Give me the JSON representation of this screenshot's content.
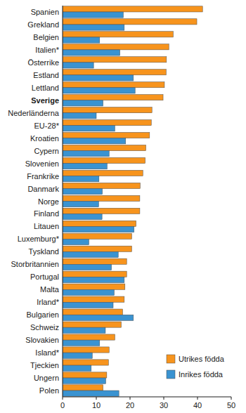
{
  "chart_data": {
    "type": "bar",
    "orientation": "horizontal",
    "categories": [
      "Spanien",
      "Grekland",
      "Belgien",
      "Italien*",
      "Österrike",
      "Estland",
      "Lettland",
      "Sverige",
      "Nederländerna",
      "EU-28*",
      "Kroatien",
      "Cypern",
      "Slovenien",
      "Frankrike",
      "Danmark",
      "Norge",
      "Finland",
      "Litauen",
      "Luxemburg*",
      "Tyskland",
      "Storbritannien",
      "Portugal",
      "Malta",
      "Irland*",
      "Bulgarien",
      "Schweiz",
      "Slovakien",
      "Island*",
      "Tjeckien",
      "Ungern",
      "Polen"
    ],
    "series": [
      {
        "name": "Utrikes födda",
        "color": "#f7941d",
        "values": [
          41.5,
          39.8,
          32.8,
          31.5,
          30.8,
          30.7,
          30.2,
          29.8,
          26.5,
          26.3,
          25.8,
          24.7,
          24.5,
          23.8,
          23.0,
          22.9,
          22.9,
          21.8,
          20.5,
          20.5,
          19.0,
          19.0,
          18.5,
          18.3,
          17.8,
          17.4,
          15.5,
          13.8,
          13.6,
          13.1,
          12.0
        ]
      },
      {
        "name": "Inrikes födda",
        "color": "#3a93d1",
        "values": [
          18.0,
          18.3,
          11.0,
          17.0,
          9.2,
          21.0,
          21.5,
          12.0,
          10.0,
          15.5,
          18.7,
          13.8,
          13.2,
          10.8,
          11.8,
          10.7,
          11.7,
          21.2,
          7.8,
          16.5,
          14.5,
          18.3,
          15.3,
          15.0,
          21.0,
          12.7,
          11.0,
          8.8,
          8.5,
          12.8,
          16.7
        ]
      }
    ],
    "xlim": [
      0,
      50
    ],
    "xticks": [
      0,
      10,
      20,
      30,
      40,
      50
    ],
    "grid": false,
    "legend": "bottom-right"
  }
}
